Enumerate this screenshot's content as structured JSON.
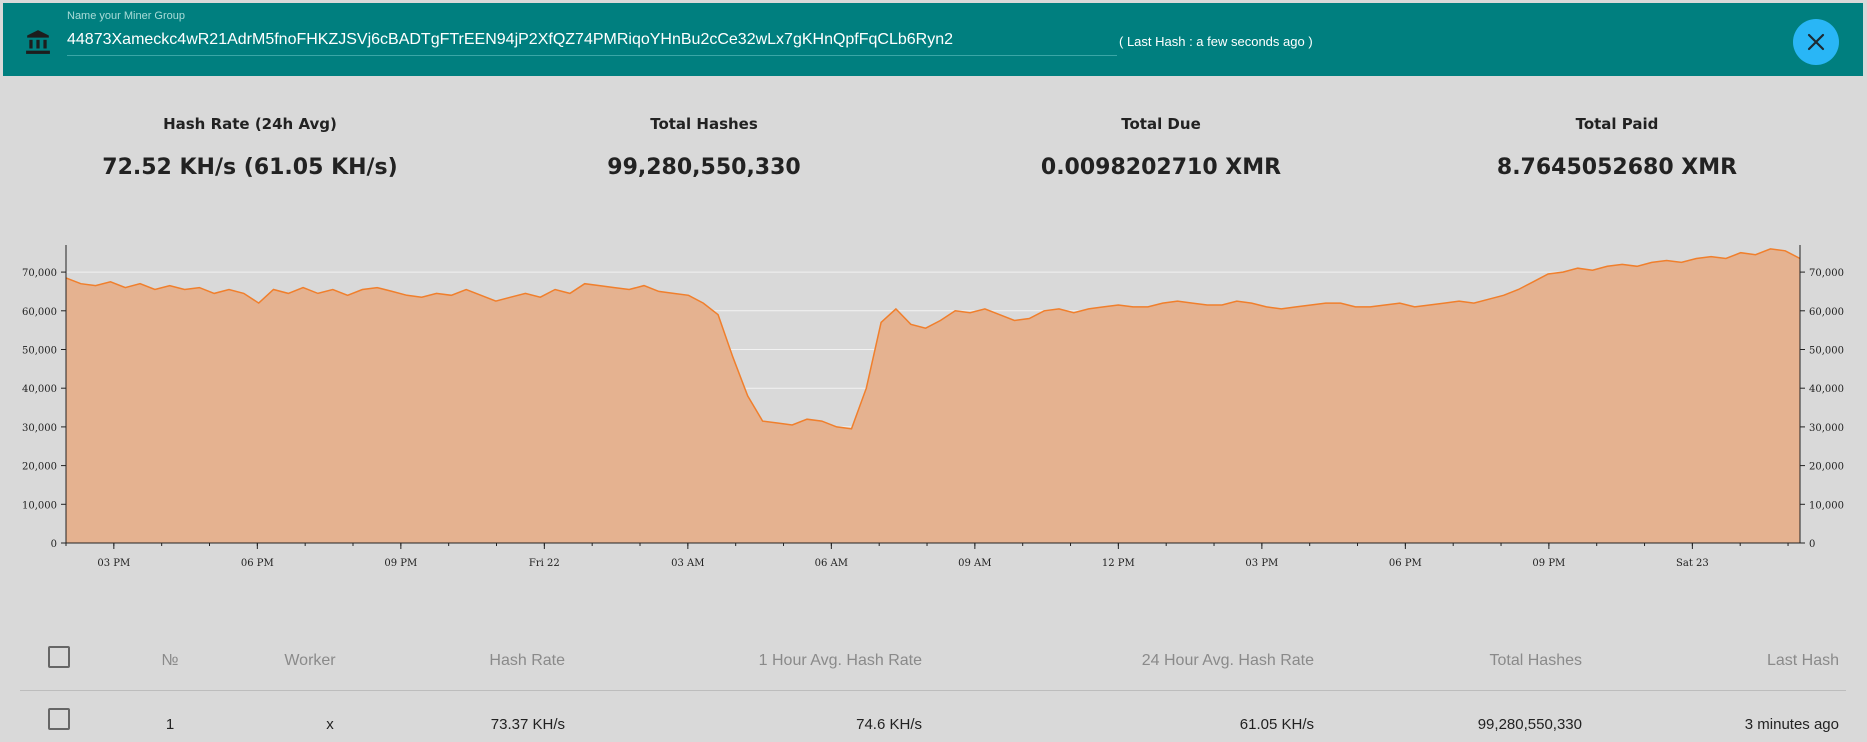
{
  "header": {
    "group_label": "Name your Miner Group",
    "address": "44873Xameckc4wR21AdrM5fnoFHKZJSVj6cBADTgFTrEEN94jP2XfQZ74PMRiqoYHnBu2cCe32wLx7gKHnQpfFqCLb6Ryn2",
    "last_hash": "( Last Hash : a few seconds ago )"
  },
  "stats": [
    {
      "label": "Hash Rate (24h Avg)",
      "value": "72.52 KH/s (61.05 KH/s)"
    },
    {
      "label": "Total Hashes",
      "value": "99,280,550,330"
    },
    {
      "label": "Total Due",
      "value": "0.0098202710 XMR"
    },
    {
      "label": "Total Paid",
      "value": "8.7645052680 XMR"
    }
  ],
  "colors": {
    "header_bg": "#007f7f",
    "close_bg": "#29b6f6",
    "area_fill": "#e5b290",
    "line": "#f07f2c"
  },
  "chart_data": {
    "type": "area",
    "x_ticks": [
      "03 PM",
      "06 PM",
      "09 PM",
      "Fri 22",
      "03 AM",
      "06 AM",
      "09 AM",
      "12 PM",
      "03 PM",
      "06 PM",
      "09 PM",
      "Sat 23"
    ],
    "y_ticks": [
      "0",
      "10,000",
      "20,000",
      "30,000",
      "40,000",
      "50,000",
      "60,000",
      "70,000"
    ],
    "ylim": [
      0,
      77000
    ],
    "x_hours_range": [
      0,
      36.25
    ],
    "grid": "horizontal",
    "points": [
      [
        0,
        68500
      ],
      [
        0.5,
        67000
      ],
      [
        1,
        66500
      ],
      [
        1.5,
        67500
      ],
      [
        2,
        66000
      ],
      [
        2.5,
        67000
      ],
      [
        3,
        65500
      ],
      [
        3.5,
        66500
      ],
      [
        4,
        65500
      ],
      [
        4.5,
        66000
      ],
      [
        5,
        64500
      ],
      [
        5.5,
        65500
      ],
      [
        6,
        64500
      ],
      [
        6.5,
        62000
      ],
      [
        7,
        65500
      ],
      [
        7.5,
        64500
      ],
      [
        8,
        66000
      ],
      [
        8.5,
        64500
      ],
      [
        9,
        65500
      ],
      [
        9.5,
        64000
      ],
      [
        10,
        65500
      ],
      [
        10.5,
        66000
      ],
      [
        11,
        65000
      ],
      [
        11.5,
        64000
      ],
      [
        12,
        63500
      ],
      [
        12.5,
        64500
      ],
      [
        13,
        64000
      ],
      [
        13.5,
        65500
      ],
      [
        14,
        64000
      ],
      [
        14.5,
        62500
      ],
      [
        15,
        63500
      ],
      [
        15.5,
        64500
      ],
      [
        16,
        63500
      ],
      [
        16.5,
        65500
      ],
      [
        17,
        64500
      ],
      [
        17.5,
        67000
      ],
      [
        18,
        66500
      ],
      [
        18.5,
        66000
      ],
      [
        19,
        65500
      ],
      [
        19.5,
        66500
      ],
      [
        20,
        65000
      ],
      [
        20.5,
        64500
      ],
      [
        21,
        64000
      ],
      [
        21.5,
        62000
      ],
      [
        22,
        59000
      ],
      [
        22.5,
        48000
      ],
      [
        23,
        38000
      ],
      [
        23.5,
        31500
      ],
      [
        24,
        31000
      ],
      [
        24.5,
        30500
      ],
      [
        25,
        32000
      ],
      [
        25.5,
        31500
      ],
      [
        26,
        30000
      ],
      [
        26.5,
        29500
      ],
      [
        27,
        40000
      ],
      [
        27.5,
        57000
      ],
      [
        28,
        60500
      ],
      [
        28.5,
        56500
      ],
      [
        29,
        55500
      ],
      [
        29.5,
        57500
      ],
      [
        30,
        60000
      ],
      [
        30.5,
        59500
      ],
      [
        31,
        60500
      ],
      [
        31.5,
        59000
      ],
      [
        32,
        57500
      ],
      [
        32.5,
        58000
      ],
      [
        33,
        60000
      ],
      [
        33.5,
        60500
      ],
      [
        34,
        59500
      ],
      [
        34.5,
        60500
      ],
      [
        35,
        61000
      ],
      [
        35.5,
        61500
      ],
      [
        36,
        61000
      ],
      [
        36.5,
        61000
      ],
      [
        37,
        62000
      ],
      [
        37.5,
        62500
      ],
      [
        38,
        62000
      ],
      [
        38.5,
        61500
      ],
      [
        39,
        61500
      ],
      [
        39.5,
        62500
      ],
      [
        40,
        62000
      ],
      [
        40.5,
        61000
      ],
      [
        41,
        60500
      ],
      [
        41.5,
        61000
      ],
      [
        42,
        61500
      ],
      [
        42.5,
        62000
      ],
      [
        43,
        62000
      ],
      [
        43.5,
        61000
      ],
      [
        44,
        61000
      ],
      [
        44.5,
        61500
      ],
      [
        45,
        62000
      ],
      [
        45.5,
        61000
      ],
      [
        46,
        61500
      ],
      [
        46.5,
        62000
      ],
      [
        47,
        62500
      ],
      [
        47.5,
        62000
      ],
      [
        48,
        63000
      ],
      [
        48.5,
        64000
      ],
      [
        49,
        65500
      ],
      [
        49.5,
        67500
      ],
      [
        50,
        69500
      ],
      [
        50.5,
        70000
      ],
      [
        51,
        71000
      ],
      [
        51.5,
        70500
      ],
      [
        52,
        71500
      ],
      [
        52.5,
        72000
      ],
      [
        53,
        71500
      ],
      [
        53.5,
        72500
      ],
      [
        54,
        73000
      ],
      [
        54.5,
        72500
      ],
      [
        55,
        73500
      ],
      [
        55.5,
        74000
      ],
      [
        56,
        73500
      ],
      [
        56.5,
        75000
      ],
      [
        57,
        74500
      ],
      [
        57.5,
        76000
      ],
      [
        58,
        75500
      ],
      [
        58.5,
        73500
      ]
    ]
  },
  "table": {
    "headers": [
      "№",
      "Worker",
      "Hash Rate",
      "1 Hour Avg. Hash Rate",
      "24 Hour Avg. Hash Rate",
      "Total Hashes",
      "Last Hash"
    ],
    "rows": [
      {
        "num": "1",
        "worker": "x",
        "hash_rate": "73.37 KH/s",
        "avg_1h": "74.6 KH/s",
        "avg_24h": "61.05 KH/s",
        "total_hashes": "99,280,550,330",
        "last_hash": "3 minutes ago"
      }
    ]
  }
}
